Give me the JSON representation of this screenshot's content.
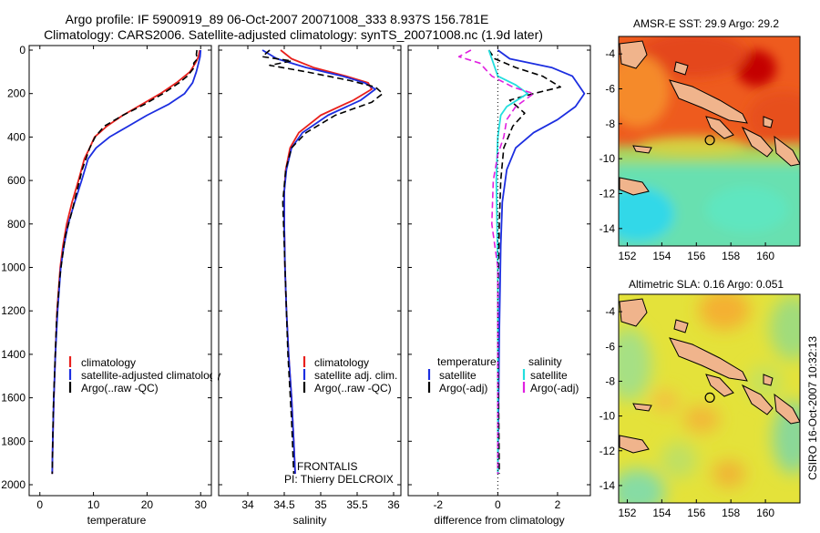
{
  "header": {
    "line1": "Argo profile: IF 5900919_89 06-Oct-2007 20071008_333 8.937S 156.781E",
    "line2": "Climatology: CARS2006. Satellite-adjusted climatology: synTS_20071008.nc (1.9d later)"
  },
  "footer": {
    "credit": "CSIRO 16-Oct-2007 10:32:13",
    "frontalis": "FRONTALIS",
    "pi": "PI: Thierry DELCROIX"
  },
  "colors": {
    "climatology": "#e8201c",
    "satellite": "#1c2ee0",
    "argo": "#000000",
    "sal_satellite": "#22dede",
    "sal_argo": "#e020e0",
    "zero_line": "#000000"
  },
  "chart_data": [
    {
      "id": "temperature",
      "type": "line",
      "xlabel": "temperature",
      "ylabel": "",
      "xlim": [
        -2,
        32
      ],
      "ylim": [
        2050,
        0
      ],
      "xticks": [
        0,
        10,
        20,
        30
      ],
      "yticks": [
        0,
        200,
        400,
        600,
        800,
        1000,
        1200,
        1400,
        1600,
        1800,
        2000
      ],
      "legend": {
        "position": "lower-middle",
        "entries": [
          "climatology",
          "satellite-adjusted climatology",
          "Argo(..raw -QC)"
        ]
      },
      "series": [
        {
          "name": "climatology",
          "color": "climatology",
          "style": "solid",
          "width": 1.8,
          "x": [
            29.8,
            29.6,
            29.0,
            28.0,
            25.5,
            22.5,
            19.0,
            15.5,
            12.5,
            10.2,
            9.3,
            8.3,
            7.2,
            6.0,
            5.0,
            4.3,
            3.8,
            3.2,
            2.9,
            2.6,
            2.4,
            2.3
          ],
          "y": [
            0,
            30,
            60,
            100,
            150,
            200,
            250,
            300,
            350,
            400,
            450,
            500,
            600,
            700,
            800,
            900,
            1000,
            1200,
            1400,
            1600,
            1800,
            1950
          ]
        },
        {
          "name": "satellite-adjusted climatology",
          "color": "satellite",
          "style": "solid",
          "width": 1.8,
          "x": [
            30.0,
            29.9,
            29.6,
            29.2,
            28.5,
            27.0,
            24.0,
            20.0,
            16.5,
            13.0,
            10.5,
            9.0,
            7.8,
            6.5,
            5.3,
            4.5,
            3.9,
            3.3,
            2.9,
            2.6,
            2.4,
            2.3
          ],
          "y": [
            0,
            30,
            60,
            100,
            150,
            200,
            250,
            300,
            350,
            400,
            450,
            500,
            600,
            700,
            800,
            900,
            1000,
            1200,
            1400,
            1600,
            1800,
            1950
          ]
        },
        {
          "name": "Argo(..raw -QC)",
          "color": "argo",
          "style": "dashed",
          "width": 1.6,
          "x": [
            29.3,
            29.2,
            29.4,
            28.7,
            28.8,
            27.5,
            26.0,
            23.0,
            19.5,
            15.5,
            12.0,
            10.3,
            9.3,
            7.9,
            6.9,
            5.9,
            4.8,
            4.2,
            3.7,
            3.1,
            2.8,
            2.5,
            2.4,
            2.3
          ],
          "y": [
            0,
            20,
            40,
            60,
            80,
            120,
            150,
            200,
            250,
            300,
            350,
            400,
            450,
            550,
            650,
            750,
            850,
            950,
            1050,
            1250,
            1450,
            1650,
            1800,
            1950
          ]
        }
      ]
    },
    {
      "id": "salinity",
      "type": "line",
      "xlabel": "salinity",
      "ylabel": "",
      "xlim": [
        33.6,
        36.1
      ],
      "ylim": [
        2050,
        0
      ],
      "xticks": [
        34,
        34.5,
        35,
        35.5,
        36
      ],
      "yticks": [
        0,
        200,
        400,
        600,
        800,
        1000,
        1200,
        1400,
        1600,
        1800,
        2000
      ],
      "legend": {
        "position": "lower-right",
        "entries": [
          "climatology",
          "satellite adj. clim.",
          "Argo(..raw -QC)"
        ]
      },
      "series": [
        {
          "name": "climatology",
          "color": "climatology",
          "style": "solid",
          "width": 1.8,
          "x": [
            34.45,
            34.6,
            34.9,
            35.35,
            35.65,
            35.7,
            35.45,
            35.0,
            34.7,
            34.58,
            34.52,
            34.5,
            34.5,
            34.51,
            34.53,
            34.56,
            34.6,
            34.63,
            34.65
          ],
          "y": [
            0,
            40,
            80,
            120,
            150,
            180,
            230,
            300,
            380,
            450,
            550,
            650,
            800,
            1000,
            1200,
            1400,
            1600,
            1800,
            1950
          ]
        },
        {
          "name": "satellite adj. clim.",
          "color": "satellite",
          "style": "solid",
          "width": 1.8,
          "x": [
            34.2,
            34.4,
            34.8,
            35.3,
            35.6,
            35.75,
            35.55,
            35.1,
            34.75,
            34.6,
            34.53,
            34.5,
            34.5,
            34.51,
            34.53,
            34.56,
            34.6,
            34.63,
            34.65
          ],
          "y": [
            0,
            40,
            80,
            120,
            150,
            180,
            230,
            300,
            380,
            450,
            550,
            650,
            800,
            1000,
            1200,
            1400,
            1600,
            1800,
            1950
          ]
        },
        {
          "name": "Argo(..raw -QC)",
          "color": "argo",
          "style": "dashed",
          "width": 1.6,
          "x": [
            34.3,
            34.2,
            34.6,
            34.3,
            34.8,
            35.4,
            35.75,
            35.85,
            35.7,
            35.2,
            34.8,
            34.6,
            34.52,
            34.48,
            34.5,
            34.52,
            34.55,
            34.6,
            34.63
          ],
          "y": [
            0,
            30,
            50,
            70,
            100,
            140,
            170,
            200,
            240,
            300,
            380,
            450,
            550,
            700,
            900,
            1100,
            1400,
            1700,
            1950
          ]
        }
      ]
    },
    {
      "id": "difference",
      "type": "line",
      "xlabel": "difference from climatology",
      "ylabel": "",
      "xlim": [
        -3.0,
        3.1
      ],
      "ylim": [
        2050,
        0
      ],
      "xticks": [
        -2,
        0,
        2
      ],
      "yticks": [
        0,
        200,
        400,
        600,
        800,
        1000,
        1200,
        1400,
        1600,
        1800,
        2000
      ],
      "legend": {
        "position": "lower",
        "temperature_title": "temperature",
        "salinity_title": "salinity",
        "entries": [
          "satellite",
          "Argo(-adj)",
          "satellite",
          "Argo(-adj)"
        ]
      },
      "series": [
        {
          "name": "temperature satellite",
          "color": "satellite",
          "style": "solid",
          "width": 1.8,
          "x": [
            0.0,
            0.4,
            1.8,
            2.5,
            2.9,
            2.6,
            2.0,
            1.2,
            0.6,
            0.3,
            0.15,
            0.1,
            0.05,
            0.0
          ],
          "y": [
            0,
            40,
            80,
            120,
            200,
            260,
            320,
            380,
            450,
            550,
            700,
            900,
            1300,
            1950
          ]
        },
        {
          "name": "temperature Argo(-adj)",
          "color": "argo",
          "style": "dashed",
          "width": 1.6,
          "x": [
            -0.3,
            -0.1,
            0.6,
            1.5,
            2.1,
            1.2,
            0.4,
            0.9,
            0.5,
            0.2,
            0.1,
            0.05,
            0.0,
            0.05
          ],
          "y": [
            0,
            40,
            80,
            120,
            170,
            200,
            230,
            290,
            350,
            450,
            600,
            800,
            1200,
            1950
          ]
        },
        {
          "name": "salinity satellite",
          "color": "sal_satellite",
          "style": "solid",
          "width": 1.8,
          "x": [
            -0.3,
            -0.2,
            -0.1,
            0.0,
            0.6,
            1.0,
            0.3,
            0.1,
            0.0,
            -0.05,
            0.0,
            0.0,
            0.0
          ],
          "y": [
            0,
            40,
            80,
            120,
            160,
            200,
            260,
            300,
            400,
            600,
            1000,
            1400,
            1950
          ]
        },
        {
          "name": "salinity Argo(-adj)",
          "color": "sal_argo",
          "style": "dashed",
          "width": 1.6,
          "x": [
            -0.9,
            -1.3,
            -0.6,
            -0.2,
            0.5,
            1.2,
            0.6,
            0.3,
            0.2,
            0.0,
            -0.15,
            -0.2,
            0.0,
            0.0
          ],
          "y": [
            0,
            30,
            60,
            120,
            170,
            200,
            260,
            320,
            400,
            480,
            600,
            800,
            1000,
            1950
          ]
        }
      ]
    },
    {
      "id": "sst-map",
      "type": "heatmap",
      "title": "AMSR-E SST: 29.9 Argo: 29.2",
      "xlim": [
        151.5,
        162
      ],
      "ylim": [
        -15,
        -3
      ],
      "xticks": [
        152,
        154,
        156,
        158,
        160
      ],
      "yticks": [
        -4,
        -6,
        -8,
        -10,
        -12,
        -14
      ],
      "float_position": {
        "lon": 156.78,
        "lat": -8.94
      }
    },
    {
      "id": "sla-map",
      "type": "heatmap",
      "title": "Altimetric SLA: 0.16 Argo: 0.051",
      "xlim": [
        151.5,
        162
      ],
      "ylim": [
        -15,
        -3
      ],
      "xticks": [
        152,
        154,
        156,
        158,
        160
      ],
      "yticks": [
        -4,
        -6,
        -8,
        -10,
        -12,
        -14
      ],
      "float_position": {
        "lon": 156.78,
        "lat": -8.94
      }
    }
  ]
}
